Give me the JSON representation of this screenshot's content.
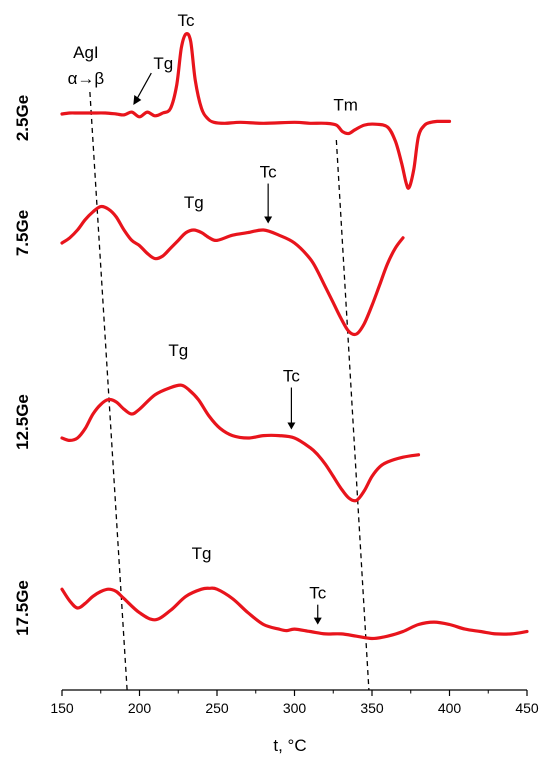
{
  "chart_data": {
    "type": "line",
    "title": "",
    "xlabel": "t, °C",
    "ylabel": "",
    "xlim": [
      150,
      450
    ],
    "xticks": [
      "150",
      "200",
      "250",
      "300",
      "350",
      "400",
      "450"
    ],
    "grid": false,
    "line_color": "#e8141c",
    "series": [
      {
        "name": "2.5Ge",
        "x": [
          150,
          155,
          160,
          165,
          170,
          178,
          185,
          190,
          195,
          200,
          205,
          210,
          215,
          220,
          224,
          227,
          230,
          233,
          236,
          240,
          244,
          248,
          255,
          265,
          280,
          300,
          310,
          320,
          327,
          331,
          335,
          339,
          345,
          352,
          360,
          365,
          369,
          372,
          374,
          377,
          380,
          384,
          388,
          392,
          396,
          400
        ],
        "y": [
          0.14,
          0.15,
          0.15,
          0.15,
          0.15,
          0.15,
          0.14,
          0.13,
          0.16,
          0.11,
          0.16,
          0.12,
          0.15,
          0.2,
          0.45,
          0.85,
          1.0,
          0.92,
          0.5,
          0.2,
          0.09,
          0.05,
          0.04,
          0.05,
          0.04,
          0.05,
          0.04,
          0.04,
          0.02,
          -0.05,
          -0.07,
          -0.03,
          0.02,
          0.03,
          0.0,
          -0.15,
          -0.38,
          -0.6,
          -0.65,
          -0.45,
          -0.1,
          0.02,
          0.05,
          0.06,
          0.06,
          0.06
        ],
        "annotations": [
          {
            "text": "Tg",
            "x": 196
          },
          {
            "text": "Tc",
            "x": 230
          },
          {
            "text": "Tm",
            "x": 333
          }
        ]
      },
      {
        "name": "7.5Ge",
        "x": [
          150,
          155,
          160,
          165,
          170,
          175,
          180,
          185,
          190,
          195,
          200,
          205,
          210,
          215,
          220,
          225,
          230,
          235,
          240,
          245,
          250,
          260,
          270,
          280,
          290,
          300,
          310,
          315,
          320,
          325,
          330,
          335,
          340,
          345,
          350,
          355,
          360,
          365,
          370
        ],
        "y": [
          0.0,
          0.1,
          0.25,
          0.45,
          0.6,
          0.7,
          0.65,
          0.5,
          0.25,
          0.05,
          -0.05,
          -0.2,
          -0.3,
          -0.25,
          -0.1,
          0.05,
          0.2,
          0.25,
          0.2,
          0.1,
          0.05,
          0.15,
          0.2,
          0.25,
          0.15,
          0.0,
          -0.3,
          -0.55,
          -0.85,
          -1.15,
          -1.45,
          -1.7,
          -1.75,
          -1.55,
          -1.2,
          -0.8,
          -0.4,
          -0.1,
          0.1
        ],
        "annotations": [
          {
            "text": "Tg",
            "x": 235
          },
          {
            "text": "Tc",
            "x": 283
          }
        ]
      },
      {
        "name": "12.5Ge",
        "x": [
          150,
          155,
          160,
          165,
          170,
          175,
          180,
          185,
          190,
          195,
          200,
          210,
          220,
          227,
          232,
          238,
          245,
          252,
          260,
          270,
          280,
          290,
          300,
          310,
          315,
          320,
          325,
          330,
          335,
          340,
          345,
          350,
          355,
          360,
          370,
          380
        ],
        "y": [
          0.0,
          -0.05,
          0.0,
          0.2,
          0.5,
          0.7,
          0.8,
          0.75,
          0.6,
          0.5,
          0.6,
          0.9,
          1.05,
          1.1,
          1.0,
          0.8,
          0.45,
          0.2,
          0.05,
          0.0,
          0.05,
          0.05,
          0.0,
          -0.2,
          -0.35,
          -0.55,
          -0.8,
          -1.05,
          -1.25,
          -1.3,
          -1.1,
          -0.8,
          -0.6,
          -0.5,
          -0.4,
          -0.35
        ],
        "annotations": [
          {
            "text": "Tg",
            "x": 225
          },
          {
            "text": "Tc",
            "x": 298
          }
        ]
      },
      {
        "name": "17.5Ge",
        "x": [
          150,
          155,
          160,
          165,
          170,
          175,
          180,
          185,
          190,
          200,
          210,
          220,
          230,
          240,
          245,
          250,
          260,
          270,
          280,
          290,
          295,
          300,
          310,
          320,
          330,
          340,
          350,
          360,
          370,
          380,
          390,
          400,
          410,
          420,
          430,
          440,
          450
        ],
        "y": [
          0.4,
          0.15,
          0.0,
          0.1,
          0.25,
          0.35,
          0.4,
          0.35,
          0.2,
          -0.1,
          -0.25,
          -0.05,
          0.25,
          0.4,
          0.42,
          0.4,
          0.2,
          -0.1,
          -0.35,
          -0.45,
          -0.48,
          -0.45,
          -0.5,
          -0.55,
          -0.55,
          -0.6,
          -0.65,
          -0.6,
          -0.5,
          -0.35,
          -0.3,
          -0.35,
          -0.45,
          -0.5,
          -0.55,
          -0.55,
          -0.5
        ],
        "annotations": [
          {
            "text": "Tg",
            "x": 240
          },
          {
            "text": "Tc",
            "x": 315
          }
        ]
      }
    ],
    "reference_lines": [
      {
        "label_lines": [
          "AgI",
          "α→β"
        ],
        "x_top": 168,
        "x_bottom": 192
      },
      {
        "label_lines": [],
        "x_top": 327,
        "x_bottom": 348
      }
    ]
  }
}
